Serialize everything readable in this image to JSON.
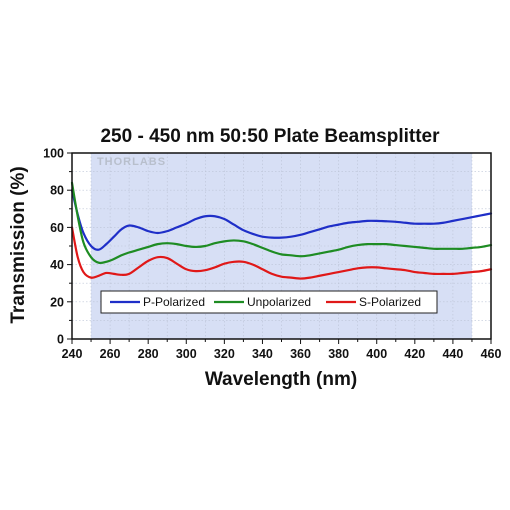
{
  "watermark": "THORLABS",
  "chart_data": {
    "type": "line",
    "title": "250 - 450 nm 50:50 Plate Beamsplitter",
    "xlabel": "Wavelength (nm)",
    "ylabel": "Transmission (%)",
    "xlim": [
      240,
      460
    ],
    "ylim": [
      0,
      100
    ],
    "xticks": [
      240,
      260,
      280,
      300,
      320,
      340,
      360,
      380,
      400,
      420,
      440,
      460
    ],
    "yticks": [
      0,
      20,
      40,
      60,
      80,
      100
    ],
    "shaded_region": [
      250,
      450
    ],
    "grid": true,
    "legend_position": "lower-center",
    "series": [
      {
        "name": "P-Polarized",
        "color": "#1f2fc8",
        "x": [
          240,
          243,
          246,
          250,
          254,
          258,
          262,
          266,
          270,
          275,
          280,
          285,
          290,
          295,
          300,
          305,
          310,
          315,
          320,
          325,
          330,
          335,
          340,
          345,
          350,
          355,
          360,
          365,
          370,
          375,
          380,
          385,
          390,
          395,
          400,
          405,
          410,
          415,
          420,
          425,
          430,
          435,
          440,
          445,
          450,
          455,
          460
        ],
        "y": [
          80,
          67,
          57,
          50,
          48,
          51,
          55,
          59,
          61,
          60,
          58,
          57,
          58,
          60,
          62,
          64.5,
          66,
          66,
          64.5,
          61.5,
          58.5,
          56.5,
          55,
          54.5,
          54.5,
          55,
          56,
          57.5,
          59,
          60.5,
          61.5,
          62.5,
          63,
          63.5,
          63.5,
          63.3,
          63,
          62.5,
          62,
          62,
          62,
          62.5,
          63.5,
          64.5,
          65.5,
          66.5,
          67.5
        ]
      },
      {
        "name": "Unpolarized",
        "color": "#1e8c23",
        "x": [
          240,
          243,
          246,
          250,
          254,
          258,
          262,
          266,
          270,
          275,
          280,
          285,
          290,
          295,
          300,
          305,
          310,
          315,
          320,
          325,
          330,
          335,
          340,
          345,
          350,
          355,
          360,
          365,
          370,
          375,
          380,
          385,
          390,
          395,
          400,
          405,
          410,
          415,
          420,
          425,
          430,
          435,
          440,
          445,
          450,
          455,
          460
        ],
        "y": [
          84,
          66,
          52,
          44,
          41,
          41.5,
          43,
          45,
          46.5,
          48,
          49.5,
          51,
          51.5,
          51,
          50,
          49.5,
          50,
          51.5,
          52.5,
          53,
          52.5,
          51,
          49,
          47,
          45.5,
          45,
          44.5,
          45,
          46,
          47,
          48,
          49.5,
          50.5,
          51,
          51,
          51,
          50.5,
          50,
          49.5,
          49,
          48.5,
          48.5,
          48.5,
          48.5,
          49,
          49.5,
          50.5
        ]
      },
      {
        "name": "S-Polarized",
        "color": "#e01818",
        "x": [
          240,
          243,
          246,
          250,
          254,
          258,
          262,
          266,
          270,
          275,
          280,
          285,
          290,
          295,
          300,
          305,
          310,
          315,
          320,
          325,
          330,
          335,
          340,
          345,
          350,
          355,
          360,
          365,
          370,
          375,
          380,
          385,
          390,
          395,
          400,
          405,
          410,
          415,
          420,
          425,
          430,
          435,
          440,
          445,
          450,
          455,
          460
        ],
        "y": [
          60,
          44,
          36,
          33,
          34,
          35.5,
          35,
          34.5,
          35,
          38.5,
          42,
          44,
          43.5,
          40.5,
          37.5,
          36.5,
          37,
          38.5,
          40.5,
          41.5,
          41.5,
          40,
          37.5,
          35,
          33.5,
          33,
          32.5,
          33,
          34,
          35,
          36,
          37,
          38,
          38.5,
          38.5,
          38,
          37.5,
          37,
          36,
          35.5,
          35,
          35,
          35,
          35.5,
          36,
          36.5,
          37.5
        ]
      }
    ]
  }
}
